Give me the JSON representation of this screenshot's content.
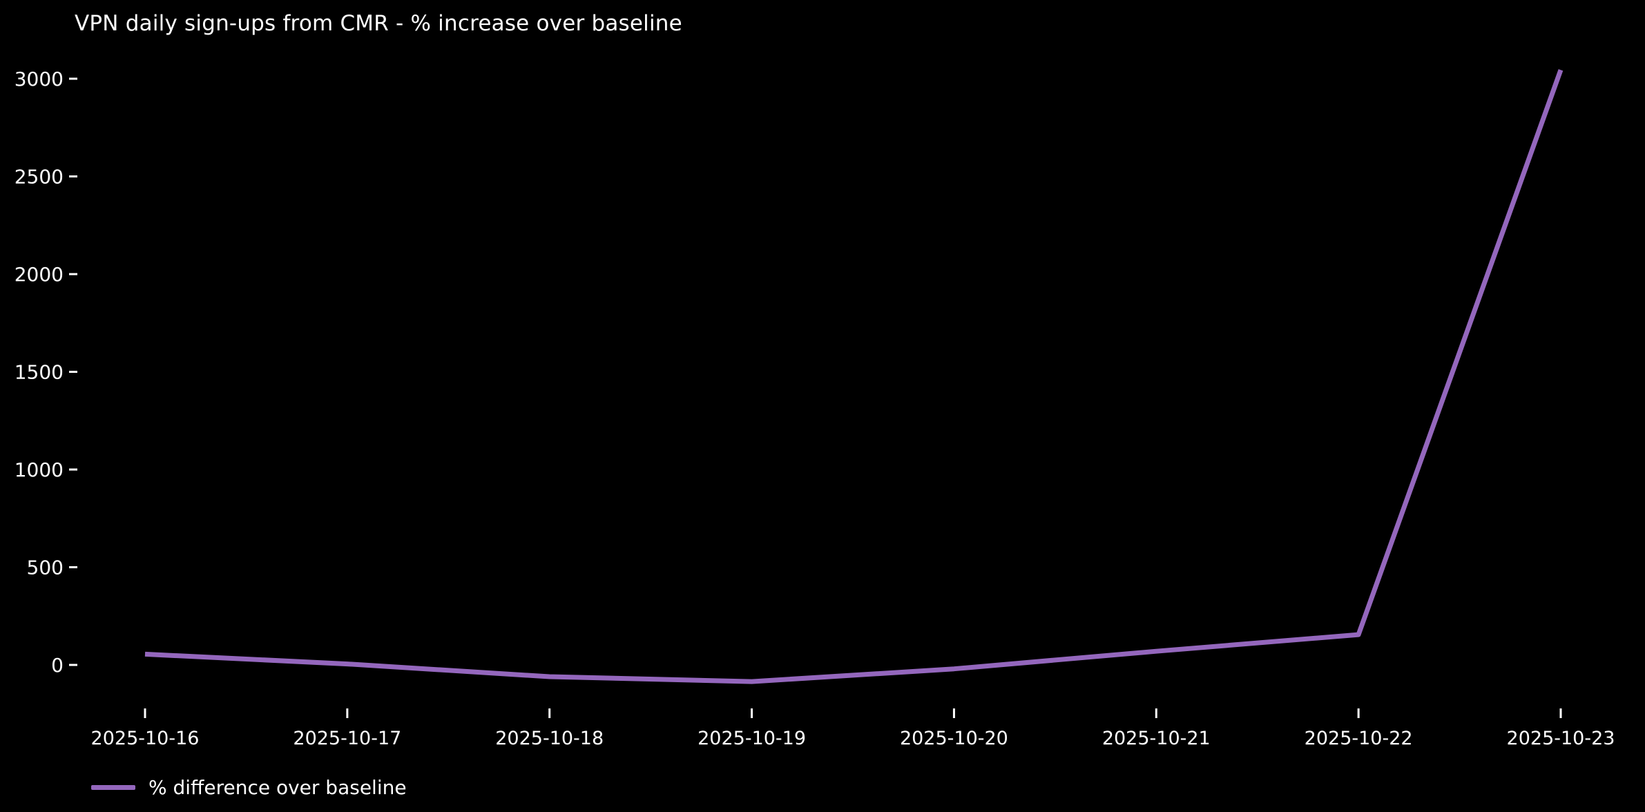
{
  "chart_data": {
    "type": "line",
    "title": "VPN daily sign-ups from CMR - % increase over baseline",
    "x": [
      "2025-10-16",
      "2025-10-17",
      "2025-10-18",
      "2025-10-19",
      "2025-10-20",
      "2025-10-21",
      "2025-10-22",
      "2025-10-23"
    ],
    "series": [
      {
        "name": "% difference over baseline",
        "values": [
          55,
          5,
          -60,
          -85,
          -20,
          70,
          155,
          3045
        ],
        "color": "#9467bd"
      }
    ],
    "xlabel": "",
    "ylabel": "",
    "yticks": [
      0,
      500,
      1000,
      1500,
      2000,
      2500,
      3000
    ],
    "ylim": [
      -150,
      3200
    ],
    "grid": false,
    "spines": false,
    "legend_position": "bottom-left",
    "background_color": "#000000",
    "text_color": "#ffffff",
    "tick_color": "#ffffff"
  }
}
